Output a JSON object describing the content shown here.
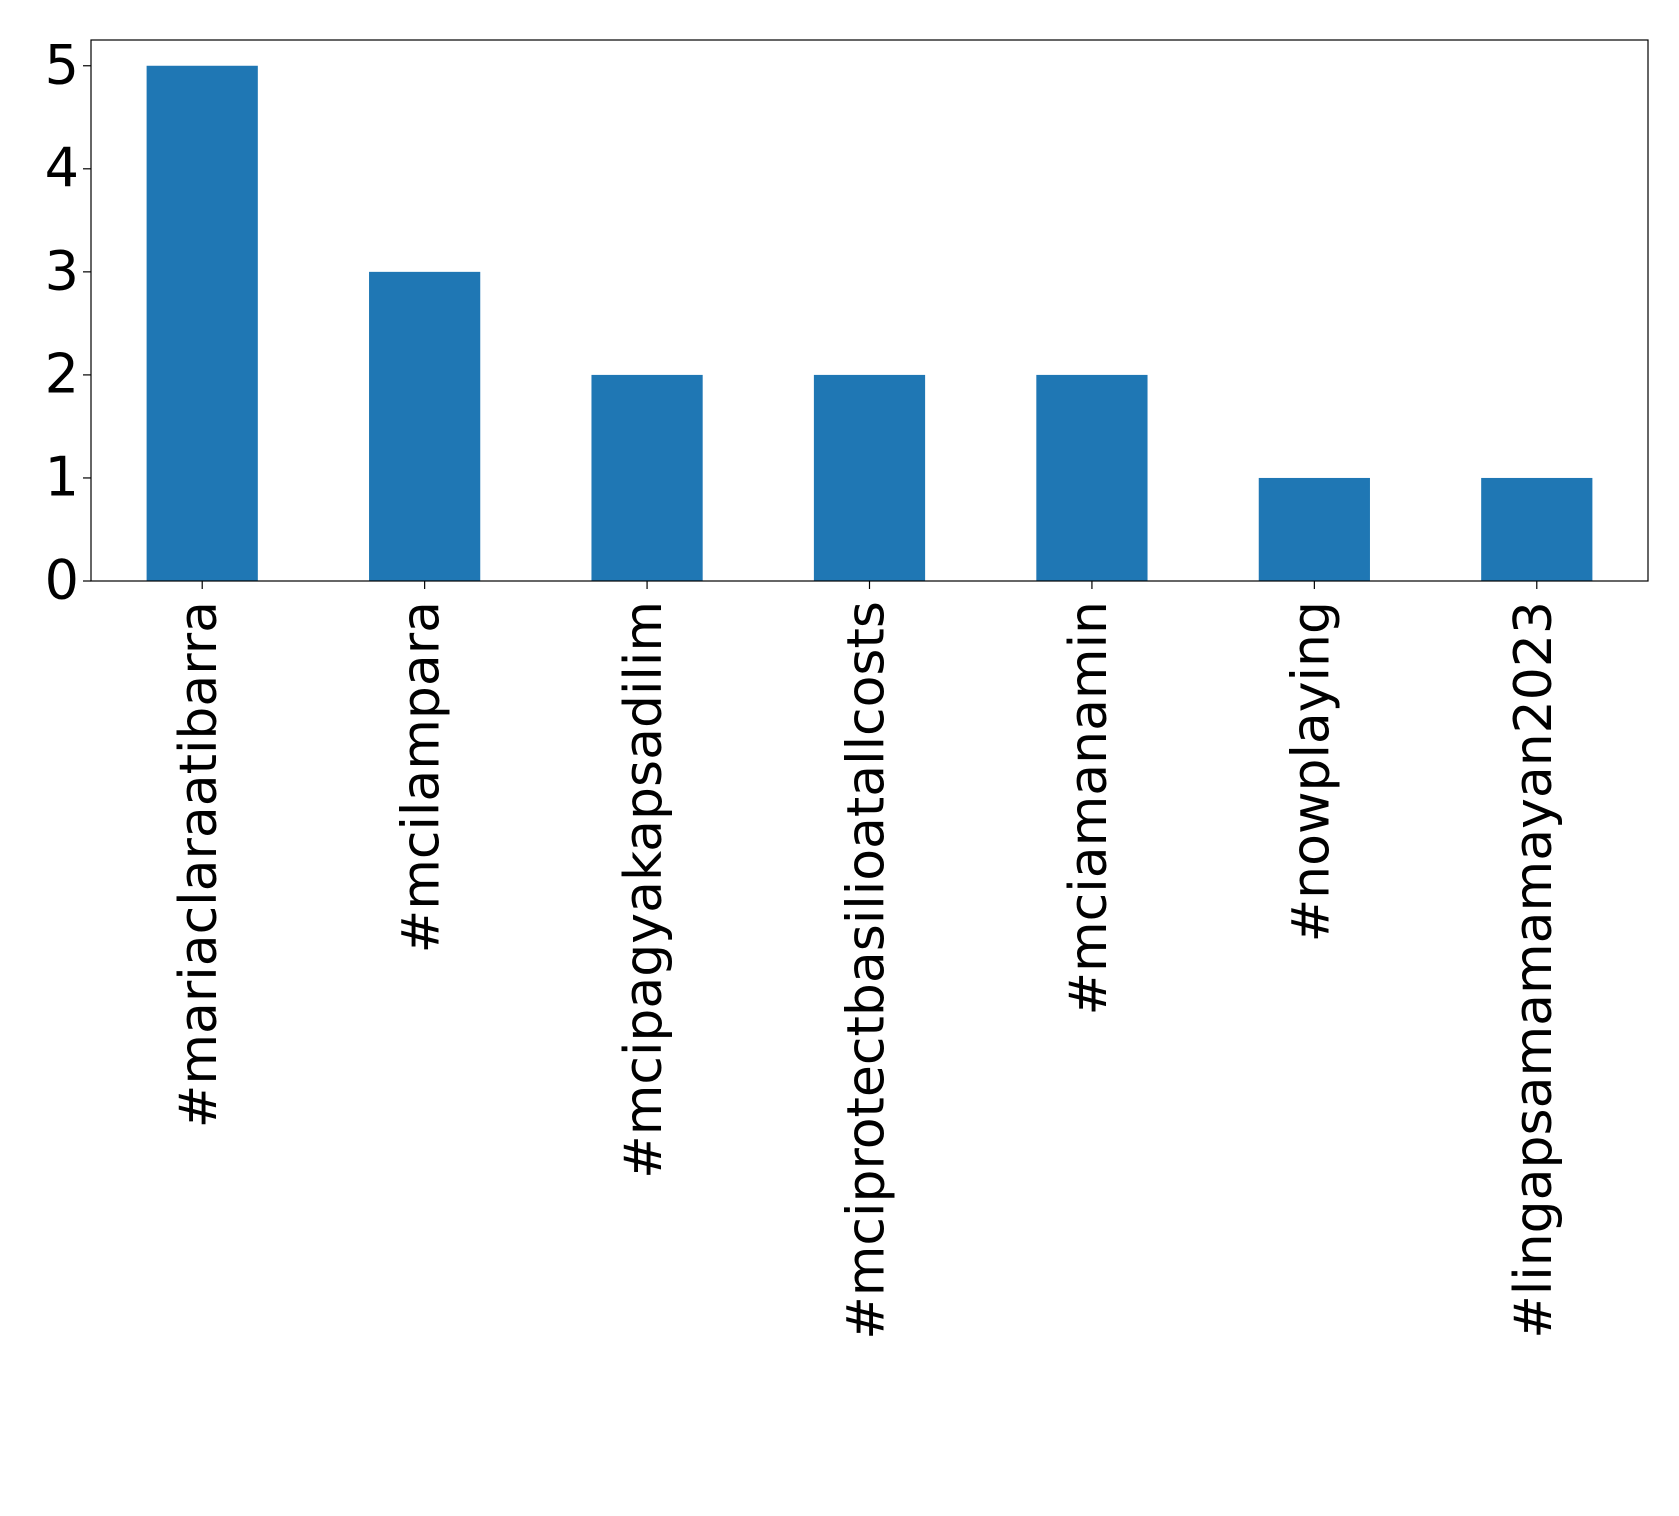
{
  "chart_data": {
    "type": "bar",
    "categories": [
      "#mariaclaraatibarra",
      "#mcilampara",
      "#mcipagyakapsadilim",
      "#mciprotectbasilioatallcosts",
      "#mciamanamin",
      "#nowplaying",
      "#lingapsamamamayan2023"
    ],
    "values": [
      5,
      3,
      2,
      2,
      2,
      1,
      1
    ],
    "color": "#1f77b4",
    "ylim": [
      0,
      5.25
    ],
    "yticks": [
      0,
      1,
      2,
      3,
      4,
      5
    ],
    "grid": false
  }
}
